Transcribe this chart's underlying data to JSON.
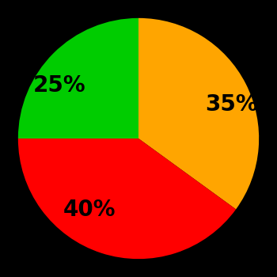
{
  "slices": [
    35,
    40,
    25
  ],
  "labels": [
    "35%",
    "40%",
    "25%"
  ],
  "colors": [
    "#FFA500",
    "#FF0000",
    "#00CC00"
  ],
  "startangle": 90,
  "background_color": "#000000",
  "text_color": "#000000",
  "font_size": 20,
  "font_weight": "bold",
  "labeldistance": 0.62
}
